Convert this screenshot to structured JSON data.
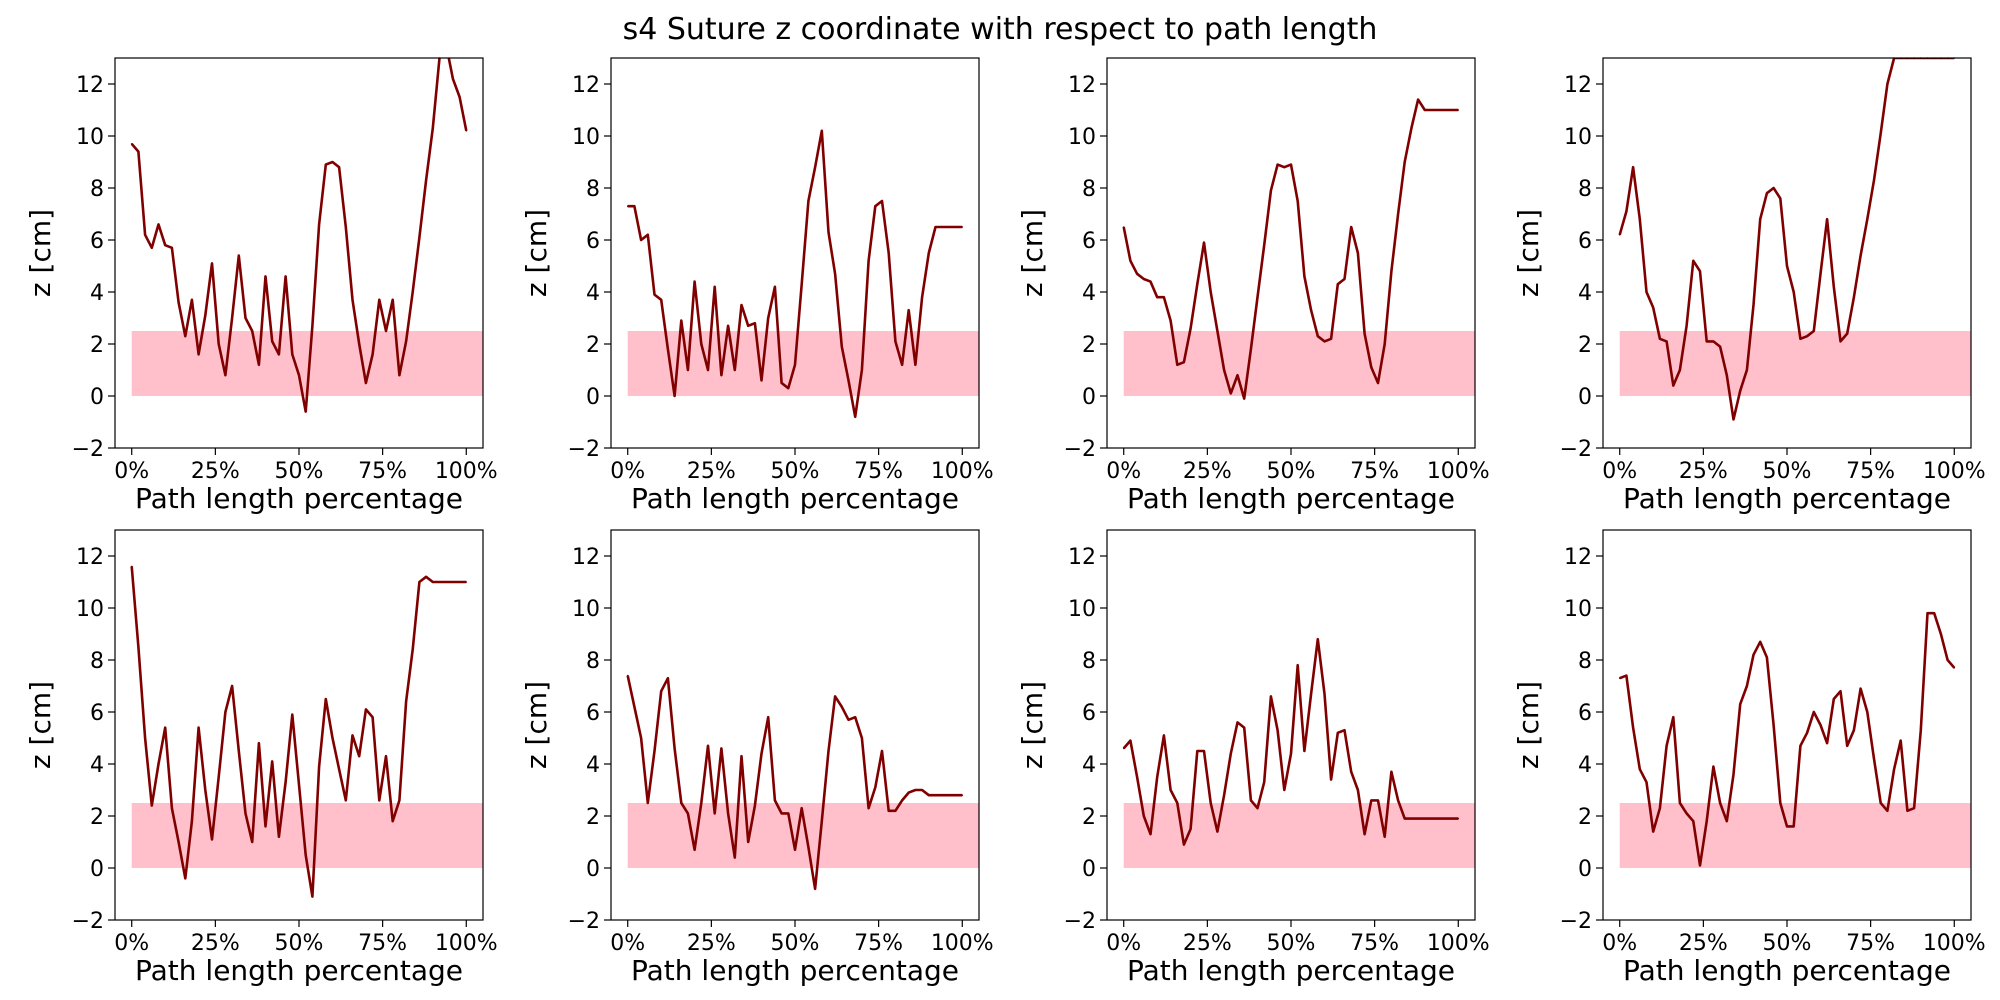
{
  "title": "s4 Suture z coordinate with respect to path length",
  "colors": {
    "line": "#800000",
    "band": "#ffc0cb",
    "axes": "#000000"
  },
  "chart_data": [
    {
      "type": "line",
      "xlabel": "Path length percentage",
      "ylabel": "z [cm]",
      "xlim": [
        -5,
        105
      ],
      "ylim": [
        -2,
        13
      ],
      "xticks": [
        "0%",
        "25%",
        "50%",
        "75%",
        "100%"
      ],
      "yticks": [
        "−2",
        "0",
        "2",
        "4",
        "6",
        "8",
        "10",
        "12"
      ],
      "band": {
        "y_from": 0,
        "y_to": 2.5,
        "x_from": 0,
        "x_to": 105
      },
      "x": [
        0,
        2,
        4,
        6,
        8,
        10,
        12,
        14,
        16,
        18,
        20,
        22,
        24,
        26,
        28,
        30,
        32,
        34,
        36,
        38,
        40,
        42,
        44,
        46,
        48,
        50,
        52,
        54,
        56,
        58,
        60,
        62,
        64,
        66,
        68,
        70,
        72,
        74,
        76,
        78,
        80,
        82,
        84,
        86,
        88,
        90,
        92,
        94,
        96,
        98,
        100
      ],
      "y": [
        9.7,
        9.4,
        6.2,
        5.7,
        6.6,
        5.8,
        5.7,
        3.6,
        2.3,
        3.7,
        1.6,
        3.1,
        5.1,
        2.0,
        0.8,
        3.0,
        5.4,
        3.0,
        2.5,
        1.2,
        4.6,
        2.1,
        1.6,
        4.6,
        1.6,
        0.8,
        -0.6,
        2.7,
        6.6,
        8.9,
        9.0,
        8.8,
        6.5,
        3.7,
        2.0,
        0.5,
        1.6,
        3.7,
        2.5,
        3.7,
        0.8,
        2.1,
        4.0,
        6.1,
        8.3,
        10.3,
        13.0,
        13.5,
        12.2,
        11.5,
        10.2
      ]
    },
    {
      "type": "line",
      "xlabel": "Path length percentage",
      "ylabel": "z [cm]",
      "xlim": [
        -5,
        105
      ],
      "ylim": [
        -2,
        13
      ],
      "xticks": [
        "0%",
        "25%",
        "50%",
        "75%",
        "100%"
      ],
      "yticks": [
        "−2",
        "0",
        "2",
        "4",
        "6",
        "8",
        "10",
        "12"
      ],
      "band": {
        "y_from": 0,
        "y_to": 2.5,
        "x_from": 0,
        "x_to": 105
      },
      "x": [
        0,
        2,
        4,
        6,
        8,
        10,
        12,
        14,
        16,
        18,
        20,
        22,
        24,
        26,
        28,
        30,
        32,
        34,
        36,
        38,
        40,
        42,
        44,
        46,
        48,
        50,
        52,
        54,
        56,
        58,
        60,
        62,
        64,
        66,
        68,
        70,
        72,
        74,
        76,
        78,
        80,
        82,
        84,
        86,
        88,
        90,
        92,
        94,
        96,
        98,
        100
      ],
      "y": [
        7.3,
        7.3,
        6.0,
        6.2,
        3.9,
        3.7,
        1.8,
        0.0,
        2.9,
        1.0,
        4.4,
        2.0,
        1.0,
        4.2,
        0.8,
        2.7,
        1.0,
        3.5,
        2.7,
        2.8,
        0.6,
        3.0,
        4.2,
        0.5,
        0.3,
        1.2,
        4.3,
        7.5,
        8.8,
        10.2,
        6.3,
        4.7,
        1.9,
        0.6,
        -0.8,
        1.0,
        5.2,
        7.3,
        7.5,
        5.5,
        2.1,
        1.2,
        3.3,
        1.2,
        3.8,
        5.5,
        6.5,
        6.5,
        6.5,
        6.5,
        6.5
      ]
    },
    {
      "type": "line",
      "xlabel": "Path length percentage",
      "ylabel": "z [cm]",
      "xlim": [
        -5,
        105
      ],
      "ylim": [
        -2,
        13
      ],
      "xticks": [
        "0%",
        "25%",
        "50%",
        "75%",
        "100%"
      ],
      "yticks": [
        "−2",
        "0",
        "2",
        "4",
        "6",
        "8",
        "10",
        "12"
      ],
      "band": {
        "y_from": 0,
        "y_to": 2.5,
        "x_from": 0,
        "x_to": 105
      },
      "x": [
        0,
        2,
        4,
        6,
        8,
        10,
        12,
        14,
        16,
        18,
        20,
        22,
        24,
        26,
        28,
        30,
        32,
        34,
        36,
        38,
        40,
        42,
        44,
        46,
        48,
        50,
        52,
        54,
        56,
        58,
        60,
        62,
        64,
        66,
        68,
        70,
        72,
        74,
        76,
        78,
        80,
        82,
        84,
        86,
        88,
        90,
        92,
        94,
        96,
        98,
        100
      ],
      "y": [
        6.5,
        5.2,
        4.7,
        4.5,
        4.4,
        3.8,
        3.8,
        2.9,
        1.2,
        1.3,
        2.6,
        4.3,
        5.9,
        4.0,
        2.5,
        1.0,
        0.1,
        0.8,
        -0.1,
        1.8,
        3.8,
        5.8,
        7.9,
        8.9,
        8.8,
        8.9,
        7.5,
        4.6,
        3.3,
        2.3,
        2.1,
        2.2,
        4.3,
        4.5,
        6.5,
        5.5,
        2.4,
        1.1,
        0.5,
        2.0,
        4.8,
        7.0,
        9.0,
        10.3,
        11.4,
        11.0,
        11.0,
        11.0,
        11.0,
        11.0,
        11.0
      ]
    },
    {
      "type": "line",
      "xlabel": "Path length percentage",
      "ylabel": "z [cm]",
      "xlim": [
        -5,
        105
      ],
      "ylim": [
        -2,
        13
      ],
      "xticks": [
        "0%",
        "25%",
        "50%",
        "75%",
        "100%"
      ],
      "yticks": [
        "−2",
        "0",
        "2",
        "4",
        "6",
        "8",
        "10",
        "12"
      ],
      "band": {
        "y_from": 0,
        "y_to": 2.5,
        "x_from": 0,
        "x_to": 105
      },
      "x": [
        0,
        2,
        4,
        6,
        8,
        10,
        12,
        14,
        16,
        18,
        20,
        22,
        24,
        26,
        28,
        30,
        32,
        34,
        36,
        38,
        40,
        42,
        44,
        46,
        48,
        50,
        52,
        54,
        56,
        58,
        60,
        62,
        64,
        66,
        68,
        70,
        72,
        74,
        76,
        78,
        80,
        82,
        84,
        86,
        88,
        90,
        92,
        94,
        96,
        98,
        100
      ],
      "y": [
        6.2,
        7.1,
        8.8,
        6.8,
        4.0,
        3.4,
        2.2,
        2.1,
        0.4,
        1.0,
        2.7,
        5.2,
        4.8,
        2.1,
        2.1,
        1.9,
        0.8,
        -0.9,
        0.2,
        1.0,
        3.5,
        6.8,
        7.8,
        8.0,
        7.6,
        5.0,
        4.0,
        2.2,
        2.3,
        2.5,
        4.7,
        6.8,
        4.2,
        2.1,
        2.4,
        3.8,
        5.4,
        6.8,
        8.3,
        10.1,
        12.0,
        13.0,
        13.0,
        13.0,
        13.0,
        13.0,
        13.0,
        13.0,
        13.0,
        13.0,
        13.0
      ]
    },
    {
      "type": "line",
      "xlabel": "Path length percentage",
      "ylabel": "z [cm]",
      "xlim": [
        -5,
        105
      ],
      "ylim": [
        -2,
        13
      ],
      "xticks": [
        "0%",
        "25%",
        "50%",
        "75%",
        "100%"
      ],
      "yticks": [
        "−2",
        "0",
        "2",
        "4",
        "6",
        "8",
        "10",
        "12"
      ],
      "band": {
        "y_from": 0,
        "y_to": 2.5,
        "x_from": 0,
        "x_to": 105
      },
      "x": [
        0,
        2,
        4,
        6,
        8,
        10,
        12,
        14,
        16,
        18,
        20,
        22,
        24,
        26,
        28,
        30,
        32,
        34,
        36,
        38,
        40,
        42,
        44,
        46,
        48,
        50,
        52,
        54,
        56,
        58,
        60,
        62,
        64,
        66,
        68,
        70,
        72,
        74,
        76,
        78,
        80,
        82,
        84,
        86,
        88,
        90,
        92,
        94,
        96,
        98,
        100
      ],
      "y": [
        11.6,
        8.5,
        5.0,
        2.4,
        4.0,
        5.4,
        2.3,
        1.0,
        -0.4,
        1.8,
        5.4,
        3.0,
        1.1,
        3.5,
        6.0,
        7.0,
        4.5,
        2.1,
        1.0,
        4.8,
        1.6,
        4.1,
        1.2,
        3.3,
        5.9,
        3.2,
        0.5,
        -1.1,
        3.9,
        6.5,
        5.0,
        3.8,
        2.6,
        5.1,
        4.3,
        6.1,
        5.8,
        2.6,
        4.3,
        1.8,
        2.6,
        6.4,
        8.4,
        11.0,
        11.2,
        11.0,
        11.0,
        11.0,
        11.0,
        11.0,
        11.0
      ]
    },
    {
      "type": "line",
      "xlabel": "Path length percentage",
      "ylabel": "z [cm]",
      "xlim": [
        -5,
        105
      ],
      "ylim": [
        -2,
        13
      ],
      "xticks": [
        "0%",
        "25%",
        "50%",
        "75%",
        "100%"
      ],
      "yticks": [
        "−2",
        "0",
        "2",
        "4",
        "6",
        "8",
        "10",
        "12"
      ],
      "band": {
        "y_from": 0,
        "y_to": 2.5,
        "x_from": 0,
        "x_to": 105
      },
      "x": [
        0,
        2,
        4,
        6,
        8,
        10,
        12,
        14,
        16,
        18,
        20,
        22,
        24,
        26,
        28,
        30,
        32,
        34,
        36,
        38,
        40,
        42,
        44,
        46,
        48,
        50,
        52,
        54,
        56,
        58,
        60,
        62,
        64,
        66,
        68,
        70,
        72,
        74,
        76,
        78,
        80,
        82,
        84,
        86,
        88,
        90,
        92,
        94,
        96,
        98,
        100
      ],
      "y": [
        7.4,
        6.2,
        5.0,
        2.5,
        4.5,
        6.8,
        7.3,
        4.6,
        2.5,
        2.1,
        0.7,
        2.5,
        4.7,
        2.1,
        4.6,
        2.1,
        0.4,
        4.3,
        1.0,
        2.4,
        4.4,
        5.8,
        2.6,
        2.1,
        2.1,
        0.7,
        2.3,
        0.8,
        -0.8,
        1.8,
        4.5,
        6.6,
        6.2,
        5.7,
        5.8,
        5.0,
        2.3,
        3.1,
        4.5,
        2.2,
        2.2,
        2.6,
        2.9,
        3.0,
        3.0,
        2.8,
        2.8,
        2.8,
        2.8,
        2.8,
        2.8
      ]
    },
    {
      "type": "line",
      "xlabel": "Path length percentage",
      "ylabel": "z [cm]",
      "xlim": [
        -5,
        105
      ],
      "ylim": [
        -2,
        13
      ],
      "xticks": [
        "0%",
        "25%",
        "50%",
        "75%",
        "100%"
      ],
      "yticks": [
        "−2",
        "0",
        "2",
        "4",
        "6",
        "8",
        "10",
        "12"
      ],
      "band": {
        "y_from": 0,
        "y_to": 2.5,
        "x_from": 0,
        "x_to": 105
      },
      "x": [
        0,
        2,
        4,
        6,
        8,
        10,
        12,
        14,
        16,
        18,
        20,
        22,
        24,
        26,
        28,
        30,
        32,
        34,
        36,
        38,
        40,
        42,
        44,
        46,
        48,
        50,
        52,
        54,
        56,
        58,
        60,
        62,
        64,
        66,
        68,
        70,
        72,
        74,
        76,
        78,
        80,
        82,
        84,
        86,
        88,
        90,
        92,
        94,
        96,
        98,
        100
      ],
      "y": [
        4.6,
        4.9,
        3.5,
        2.0,
        1.3,
        3.5,
        5.1,
        3.0,
        2.5,
        0.9,
        1.5,
        4.5,
        4.5,
        2.5,
        1.4,
        2.8,
        4.4,
        5.6,
        5.4,
        2.6,
        2.3,
        3.3,
        6.6,
        5.3,
        3.0,
        4.4,
        7.8,
        4.5,
        6.7,
        8.8,
        6.7,
        3.4,
        5.2,
        5.3,
        3.7,
        3.0,
        1.3,
        2.6,
        2.6,
        1.2,
        3.7,
        2.6,
        1.9,
        1.9,
        1.9,
        1.9,
        1.9,
        1.9,
        1.9,
        1.9,
        1.9
      ]
    },
    {
      "type": "line",
      "xlabel": "Path length percentage",
      "ylabel": "z [cm]",
      "xlim": [
        -5,
        105
      ],
      "ylim": [
        -2,
        13
      ],
      "xticks": [
        "0%",
        "25%",
        "50%",
        "75%",
        "100%"
      ],
      "yticks": [
        "−2",
        "0",
        "2",
        "4",
        "6",
        "8",
        "10",
        "12"
      ],
      "band": {
        "y_from": 0,
        "y_to": 2.5,
        "x_from": 0,
        "x_to": 105
      },
      "x": [
        0,
        2,
        4,
        6,
        8,
        10,
        12,
        14,
        16,
        18,
        20,
        22,
        24,
        26,
        28,
        30,
        32,
        34,
        36,
        38,
        40,
        42,
        44,
        46,
        48,
        50,
        52,
        54,
        56,
        58,
        60,
        62,
        64,
        66,
        68,
        70,
        72,
        74,
        76,
        78,
        80,
        82,
        84,
        86,
        88,
        90,
        92,
        94,
        96,
        98,
        100
      ],
      "y": [
        7.3,
        7.4,
        5.4,
        3.8,
        3.3,
        1.4,
        2.3,
        4.7,
        5.8,
        2.5,
        2.1,
        1.8,
        0.1,
        1.8,
        3.9,
        2.5,
        1.8,
        3.6,
        6.3,
        7.0,
        8.2,
        8.7,
        8.1,
        5.5,
        2.5,
        1.6,
        1.6,
        4.7,
        5.2,
        6.0,
        5.5,
        4.8,
        6.5,
        6.8,
        4.7,
        5.3,
        6.9,
        6.0,
        4.2,
        2.5,
        2.2,
        3.8,
        4.9,
        2.2,
        2.3,
        5.3,
        9.8,
        9.8,
        9.0,
        8.0,
        7.7
      ]
    }
  ]
}
